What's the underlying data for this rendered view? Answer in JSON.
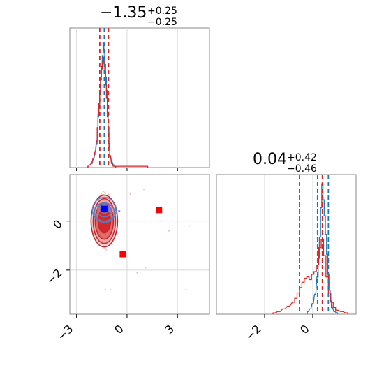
{
  "chart_data": [
    {
      "type": "histogram",
      "panel": "top-left",
      "title": {
        "value": "−1.35",
        "plus": "+0.25",
        "minus": "−0.25"
      },
      "xlim": [
        -3.4,
        4.9
      ],
      "xticks": [
        -3,
        0,
        3
      ],
      "vlines": [
        {
          "x": -1.62,
          "color": "#d62728"
        },
        {
          "x": -1.35,
          "color": "#1f77b4"
        },
        {
          "x": -1.1,
          "color": "#d62728"
        }
      ],
      "series": [
        {
          "color": "#1f77b4",
          "x": [
            -2.3,
            -2.2,
            -2.1,
            -2.0,
            -1.9,
            -1.8,
            -1.75,
            -1.7,
            -1.65,
            -1.6,
            -1.55,
            -1.5,
            -1.45,
            -1.4,
            -1.35,
            -1.3,
            -1.25,
            -1.2,
            -1.15,
            -1.1,
            -1.05,
            -1.0,
            -0.9,
            -0.8,
            -0.7
          ],
          "y": [
            0.01,
            0.02,
            0.03,
            0.06,
            0.1,
            0.18,
            0.28,
            0.38,
            0.46,
            0.55,
            0.66,
            0.76,
            0.84,
            0.94,
            0.88,
            0.78,
            0.68,
            0.58,
            0.42,
            0.3,
            0.18,
            0.09,
            0.04,
            0.02,
            0.01
          ]
        },
        {
          "color": "#d62728",
          "x": [
            -2.3,
            -2.2,
            -2.1,
            -2.0,
            -1.9,
            -1.8,
            -1.75,
            -1.7,
            -1.65,
            -1.6,
            -1.55,
            -1.5,
            -1.45,
            -1.4,
            -1.35,
            -1.3,
            -1.25,
            -1.2,
            -1.15,
            -1.1,
            -1.05,
            -1.0,
            -0.9,
            -0.8,
            -0.7,
            1.2
          ],
          "y": [
            0.01,
            0.02,
            0.04,
            0.07,
            0.12,
            0.2,
            0.3,
            0.4,
            0.48,
            0.58,
            0.68,
            0.74,
            0.8,
            0.83,
            0.78,
            0.72,
            0.62,
            0.52,
            0.38,
            0.26,
            0.15,
            0.08,
            0.03,
            0.01,
            0.01,
            0.01
          ]
        }
      ]
    },
    {
      "type": "scatter",
      "panel": "bottom-left",
      "xlim": [
        -3.4,
        4.9
      ],
      "ylim": [
        -3.8,
        1.9
      ],
      "xticks": [
        -3,
        0,
        3
      ],
      "xtick_labels": [
        "−3",
        "0",
        "3"
      ],
      "yticks": [
        0,
        -2
      ],
      "ytick_labels": [
        "0",
        "−2"
      ],
      "grid": true,
      "contour_center": {
        "x": -1.35,
        "y": 0.0
      },
      "markers": [
        {
          "x": -1.35,
          "y": 0.5,
          "color": "#0000ff",
          "shape": "square"
        },
        {
          "x": 1.9,
          "y": 0.45,
          "color": "#ff0000",
          "shape": "square"
        },
        {
          "x": -0.25,
          "y": -1.35,
          "color": "#ff0000",
          "shape": "square"
        }
      ]
    },
    {
      "type": "histogram",
      "panel": "bottom-right",
      "title": {
        "value": "0.04",
        "plus": "+0.42",
        "minus": "−0.46"
      },
      "xlim": [
        -4.0,
        1.8
      ],
      "xticks": [
        -2,
        0
      ],
      "xtick_labels": [
        "−2",
        "0"
      ],
      "grid": true,
      "vlines": [
        {
          "x": -0.55,
          "color": "#d62728"
        },
        {
          "x": 0.2,
          "color": "#1f77b4"
        },
        {
          "x": 0.4,
          "color": "#d62728"
        },
        {
          "x": 0.65,
          "color": "#1f77b4"
        }
      ],
      "series": [
        {
          "color": "#1f77b4",
          "x": [
            -0.2,
            -0.1,
            0.0,
            0.1,
            0.2,
            0.25,
            0.3,
            0.35,
            0.4,
            0.45,
            0.5,
            0.55,
            0.6,
            0.65,
            0.7,
            0.75,
            0.8,
            0.9,
            1.0
          ],
          "y": [
            0.02,
            0.04,
            0.08,
            0.15,
            0.28,
            0.42,
            0.58,
            0.8,
            0.98,
            0.86,
            0.74,
            0.6,
            0.45,
            0.3,
            0.18,
            0.1,
            0.05,
            0.02,
            0.01
          ]
        },
        {
          "color": "#d62728",
          "x": [
            -1.6,
            -1.4,
            -1.2,
            -1.0,
            -0.8,
            -0.7,
            -0.6,
            -0.5,
            -0.4,
            -0.3,
            -0.2,
            -0.1,
            0.0,
            0.1,
            0.2,
            0.3,
            0.4,
            0.5,
            0.6,
            0.7,
            0.8,
            0.9,
            1.0,
            1.2,
            1.4
          ],
          "y": [
            0.01,
            0.02,
            0.04,
            0.06,
            0.09,
            0.12,
            0.16,
            0.2,
            0.24,
            0.27,
            0.28,
            0.26,
            0.3,
            0.32,
            0.37,
            0.5,
            0.56,
            0.44,
            0.28,
            0.16,
            0.09,
            0.05,
            0.03,
            0.02,
            0.01
          ]
        }
      ]
    }
  ]
}
